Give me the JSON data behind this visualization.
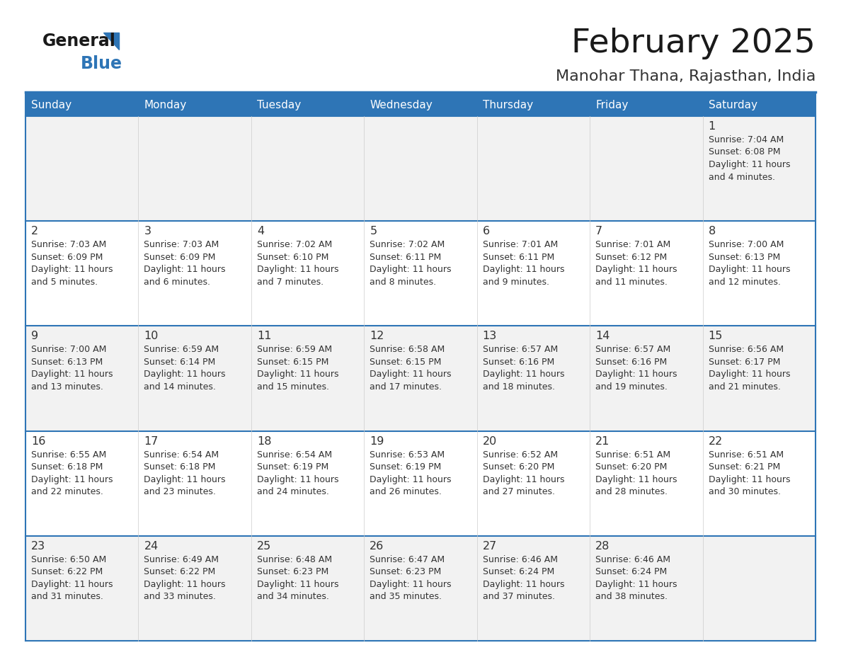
{
  "title": "February 2025",
  "subtitle": "Manohar Thana, Rajasthan, India",
  "days_of_week": [
    "Sunday",
    "Monday",
    "Tuesday",
    "Wednesday",
    "Thursday",
    "Friday",
    "Saturday"
  ],
  "header_bg": "#2E75B6",
  "header_text": "#FFFFFF",
  "row_bg": [
    "#F2F2F2",
    "#FFFFFF",
    "#F2F2F2",
    "#FFFFFF",
    "#F2F2F2"
  ],
  "divider_color": "#2E75B6",
  "border_color": "#2E75B6",
  "text_color": "#333333",
  "title_color": "#1a1a1a",
  "subtitle_color": "#333333",
  "logo_general_color": "#1a1a1a",
  "logo_blue_color": "#2E75B6",
  "weeks": [
    [
      null,
      null,
      null,
      null,
      null,
      null,
      {
        "day": 1,
        "sunrise": "7:04 AM",
        "sunset": "6:08 PM",
        "daylight": "11 hours and 4 minutes."
      }
    ],
    [
      {
        "day": 2,
        "sunrise": "7:03 AM",
        "sunset": "6:09 PM",
        "daylight": "11 hours and 5 minutes."
      },
      {
        "day": 3,
        "sunrise": "7:03 AM",
        "sunset": "6:09 PM",
        "daylight": "11 hours and 6 minutes."
      },
      {
        "day": 4,
        "sunrise": "7:02 AM",
        "sunset": "6:10 PM",
        "daylight": "11 hours and 7 minutes."
      },
      {
        "day": 5,
        "sunrise": "7:02 AM",
        "sunset": "6:11 PM",
        "daylight": "11 hours and 8 minutes."
      },
      {
        "day": 6,
        "sunrise": "7:01 AM",
        "sunset": "6:11 PM",
        "daylight": "11 hours and 9 minutes."
      },
      {
        "day": 7,
        "sunrise": "7:01 AM",
        "sunset": "6:12 PM",
        "daylight": "11 hours and 11 minutes."
      },
      {
        "day": 8,
        "sunrise": "7:00 AM",
        "sunset": "6:13 PM",
        "daylight": "11 hours and 12 minutes."
      }
    ],
    [
      {
        "day": 9,
        "sunrise": "7:00 AM",
        "sunset": "6:13 PM",
        "daylight": "11 hours and 13 minutes."
      },
      {
        "day": 10,
        "sunrise": "6:59 AM",
        "sunset": "6:14 PM",
        "daylight": "11 hours and 14 minutes."
      },
      {
        "day": 11,
        "sunrise": "6:59 AM",
        "sunset": "6:15 PM",
        "daylight": "11 hours and 15 minutes."
      },
      {
        "day": 12,
        "sunrise": "6:58 AM",
        "sunset": "6:15 PM",
        "daylight": "11 hours and 17 minutes."
      },
      {
        "day": 13,
        "sunrise": "6:57 AM",
        "sunset": "6:16 PM",
        "daylight": "11 hours and 18 minutes."
      },
      {
        "day": 14,
        "sunrise": "6:57 AM",
        "sunset": "6:16 PM",
        "daylight": "11 hours and 19 minutes."
      },
      {
        "day": 15,
        "sunrise": "6:56 AM",
        "sunset": "6:17 PM",
        "daylight": "11 hours and 21 minutes."
      }
    ],
    [
      {
        "day": 16,
        "sunrise": "6:55 AM",
        "sunset": "6:18 PM",
        "daylight": "11 hours and 22 minutes."
      },
      {
        "day": 17,
        "sunrise": "6:54 AM",
        "sunset": "6:18 PM",
        "daylight": "11 hours and 23 minutes."
      },
      {
        "day": 18,
        "sunrise": "6:54 AM",
        "sunset": "6:19 PM",
        "daylight": "11 hours and 24 minutes."
      },
      {
        "day": 19,
        "sunrise": "6:53 AM",
        "sunset": "6:19 PM",
        "daylight": "11 hours and 26 minutes."
      },
      {
        "day": 20,
        "sunrise": "6:52 AM",
        "sunset": "6:20 PM",
        "daylight": "11 hours and 27 minutes."
      },
      {
        "day": 21,
        "sunrise": "6:51 AM",
        "sunset": "6:20 PM",
        "daylight": "11 hours and 28 minutes."
      },
      {
        "day": 22,
        "sunrise": "6:51 AM",
        "sunset": "6:21 PM",
        "daylight": "11 hours and 30 minutes."
      }
    ],
    [
      {
        "day": 23,
        "sunrise": "6:50 AM",
        "sunset": "6:22 PM",
        "daylight": "11 hours and 31 minutes."
      },
      {
        "day": 24,
        "sunrise": "6:49 AM",
        "sunset": "6:22 PM",
        "daylight": "11 hours and 33 minutes."
      },
      {
        "day": 25,
        "sunrise": "6:48 AM",
        "sunset": "6:23 PM",
        "daylight": "11 hours and 34 minutes."
      },
      {
        "day": 26,
        "sunrise": "6:47 AM",
        "sunset": "6:23 PM",
        "daylight": "11 hours and 35 minutes."
      },
      {
        "day": 27,
        "sunrise": "6:46 AM",
        "sunset": "6:24 PM",
        "daylight": "11 hours and 37 minutes."
      },
      {
        "day": 28,
        "sunrise": "6:46 AM",
        "sunset": "6:24 PM",
        "daylight": "11 hours and 38 minutes."
      },
      null
    ]
  ]
}
